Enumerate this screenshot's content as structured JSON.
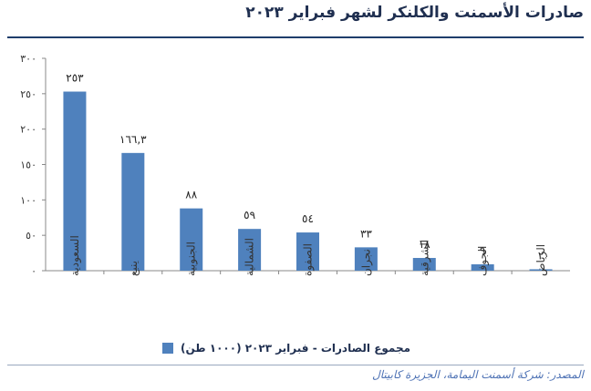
{
  "title": "صادرات الأسمنت والكلنكر لشهر فبراير ٢٠٢٣",
  "source": "المصدر: شركة أسمنت اليمامة، الجزيرة كابيتال",
  "colors": {
    "bar": "#4f81bd",
    "title": "#1f2f50",
    "axis": "#888888"
  },
  "chart_data": {
    "type": "bar",
    "categories": [
      "السعودية",
      "ينبع",
      "الجنوبية",
      "الشمالية",
      "الصفوة",
      "نجران",
      "الشرقية",
      "الجوف",
      "الرياض"
    ],
    "series": [
      {
        "name": "مجموع الصادرات - فبراير ٢٠٢٣ (١٠٠٠ طن)",
        "values": [
          253,
          166.3,
          88,
          59,
          54,
          33,
          18,
          9,
          2
        ],
        "labels": [
          "٢٥٣",
          "١٦٦,٣",
          "٨٨",
          "٥٩",
          "٥٤",
          "٣٣",
          "١٨",
          "٩",
          "٢"
        ]
      }
    ],
    "ylim": [
      0,
      300
    ],
    "yticks": [
      0,
      50,
      100,
      150,
      200,
      250,
      300
    ],
    "ytick_labels": [
      "٠",
      "٥٠",
      "١٠٠",
      "١٥٠",
      "٢٠٠",
      "٢٥٠",
      "٣٠٠"
    ],
    "grid": false,
    "legend": "bottom"
  }
}
